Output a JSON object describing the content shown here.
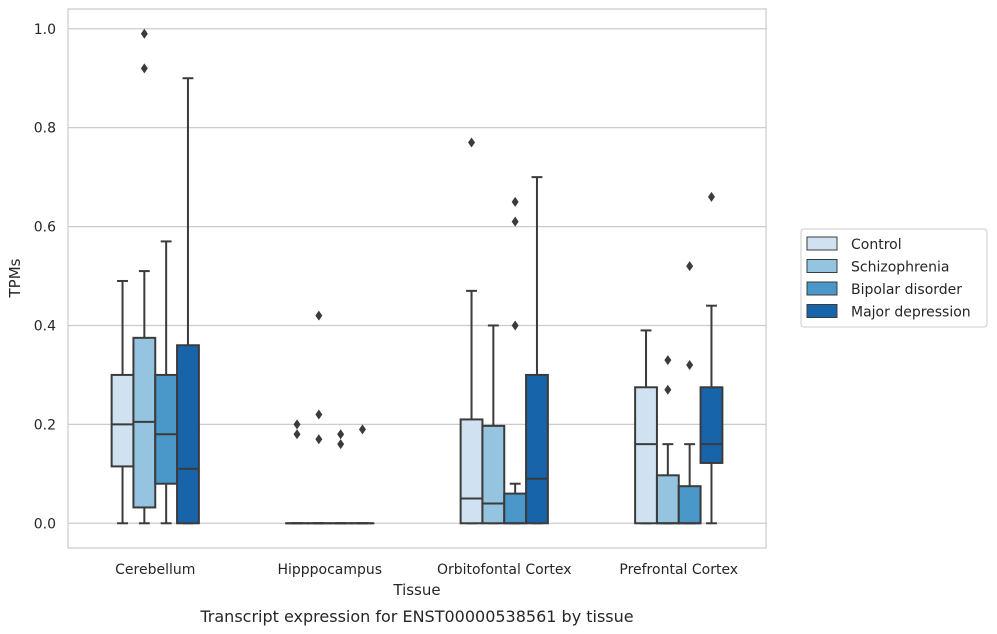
{
  "caption": "Transcript expression for ENST00000538561 by tissue",
  "chart_data": {
    "type": "box",
    "xlabel": "Tissue",
    "ylabel": "TPMs",
    "ylim": [
      -0.05,
      1.04
    ],
    "yticks": [
      "0.0",
      "0.2",
      "0.4",
      "0.6",
      "0.8",
      "1.0"
    ],
    "grid": true,
    "legend_position": "right",
    "categories": [
      "Cerebellum",
      "Hipppocampus",
      "Orbitofontal Cortex",
      "Prefrontal Cortex"
    ],
    "series": [
      {
        "name": "Control",
        "color": "#d0e1f2",
        "boxes": [
          {
            "q1": 0.115,
            "median": 0.2,
            "q3": 0.3,
            "whisker_low": 0.0,
            "whisker_high": 0.49,
            "outliers": []
          },
          {
            "q1": 0.0,
            "median": 0.0,
            "q3": 0.0,
            "whisker_low": 0.0,
            "whisker_high": 0.0,
            "outliers": [
              0.18,
              0.2
            ]
          },
          {
            "q1": 0.0,
            "median": 0.05,
            "q3": 0.21,
            "whisker_low": 0.0,
            "whisker_high": 0.47,
            "outliers": [
              0.77
            ]
          },
          {
            "q1": 0.0,
            "median": 0.16,
            "q3": 0.275,
            "whisker_low": 0.0,
            "whisker_high": 0.39,
            "outliers": []
          }
        ]
      },
      {
        "name": "Schizophrenia",
        "color": "#94c4df",
        "boxes": [
          {
            "q1": 0.032,
            "median": 0.205,
            "q3": 0.375,
            "whisker_low": 0.0,
            "whisker_high": 0.51,
            "outliers": [
              0.92,
              0.99
            ]
          },
          {
            "q1": 0.0,
            "median": 0.0,
            "q3": 0.0,
            "whisker_low": 0.0,
            "whisker_high": 0.0,
            "outliers": [
              0.17,
              0.22,
              0.42
            ]
          },
          {
            "q1": 0.0,
            "median": 0.04,
            "q3": 0.197,
            "whisker_low": 0.0,
            "whisker_high": 0.4,
            "outliers": []
          },
          {
            "q1": 0.0,
            "median": 0.0,
            "q3": 0.097,
            "whisker_low": 0.0,
            "whisker_high": 0.16,
            "outliers": [
              0.27,
              0.33
            ]
          }
        ]
      },
      {
        "name": "Bipolar disorder",
        "color": "#4a98c9",
        "boxes": [
          {
            "q1": 0.08,
            "median": 0.18,
            "q3": 0.3,
            "whisker_low": 0.0,
            "whisker_high": 0.57,
            "outliers": []
          },
          {
            "q1": 0.0,
            "median": 0.0,
            "q3": 0.0,
            "whisker_low": 0.0,
            "whisker_high": 0.0,
            "outliers": [
              0.16,
              0.18
            ]
          },
          {
            "q1": 0.0,
            "median": 0.0,
            "q3": 0.06,
            "whisker_low": 0.0,
            "whisker_high": 0.08,
            "outliers": [
              0.4,
              0.61,
              0.65
            ]
          },
          {
            "q1": 0.0,
            "median": 0.0,
            "q3": 0.075,
            "whisker_low": 0.0,
            "whisker_high": 0.16,
            "outliers": [
              0.32,
              0.52
            ]
          }
        ]
      },
      {
        "name": "Major depression",
        "color": "#1764ab",
        "boxes": [
          {
            "q1": 0.0,
            "median": 0.11,
            "q3": 0.36,
            "whisker_low": 0.0,
            "whisker_high": 0.9,
            "outliers": []
          },
          {
            "q1": 0.0,
            "median": 0.0,
            "q3": 0.0,
            "whisker_low": 0.0,
            "whisker_high": 0.0,
            "outliers": [
              0.19
            ]
          },
          {
            "q1": 0.0,
            "median": 0.09,
            "q3": 0.3,
            "whisker_low": 0.0,
            "whisker_high": 0.7,
            "outliers": []
          },
          {
            "q1": 0.122,
            "median": 0.16,
            "q3": 0.275,
            "whisker_low": 0.0,
            "whisker_high": 0.44,
            "outliers": [
              0.66
            ]
          }
        ]
      }
    ]
  }
}
